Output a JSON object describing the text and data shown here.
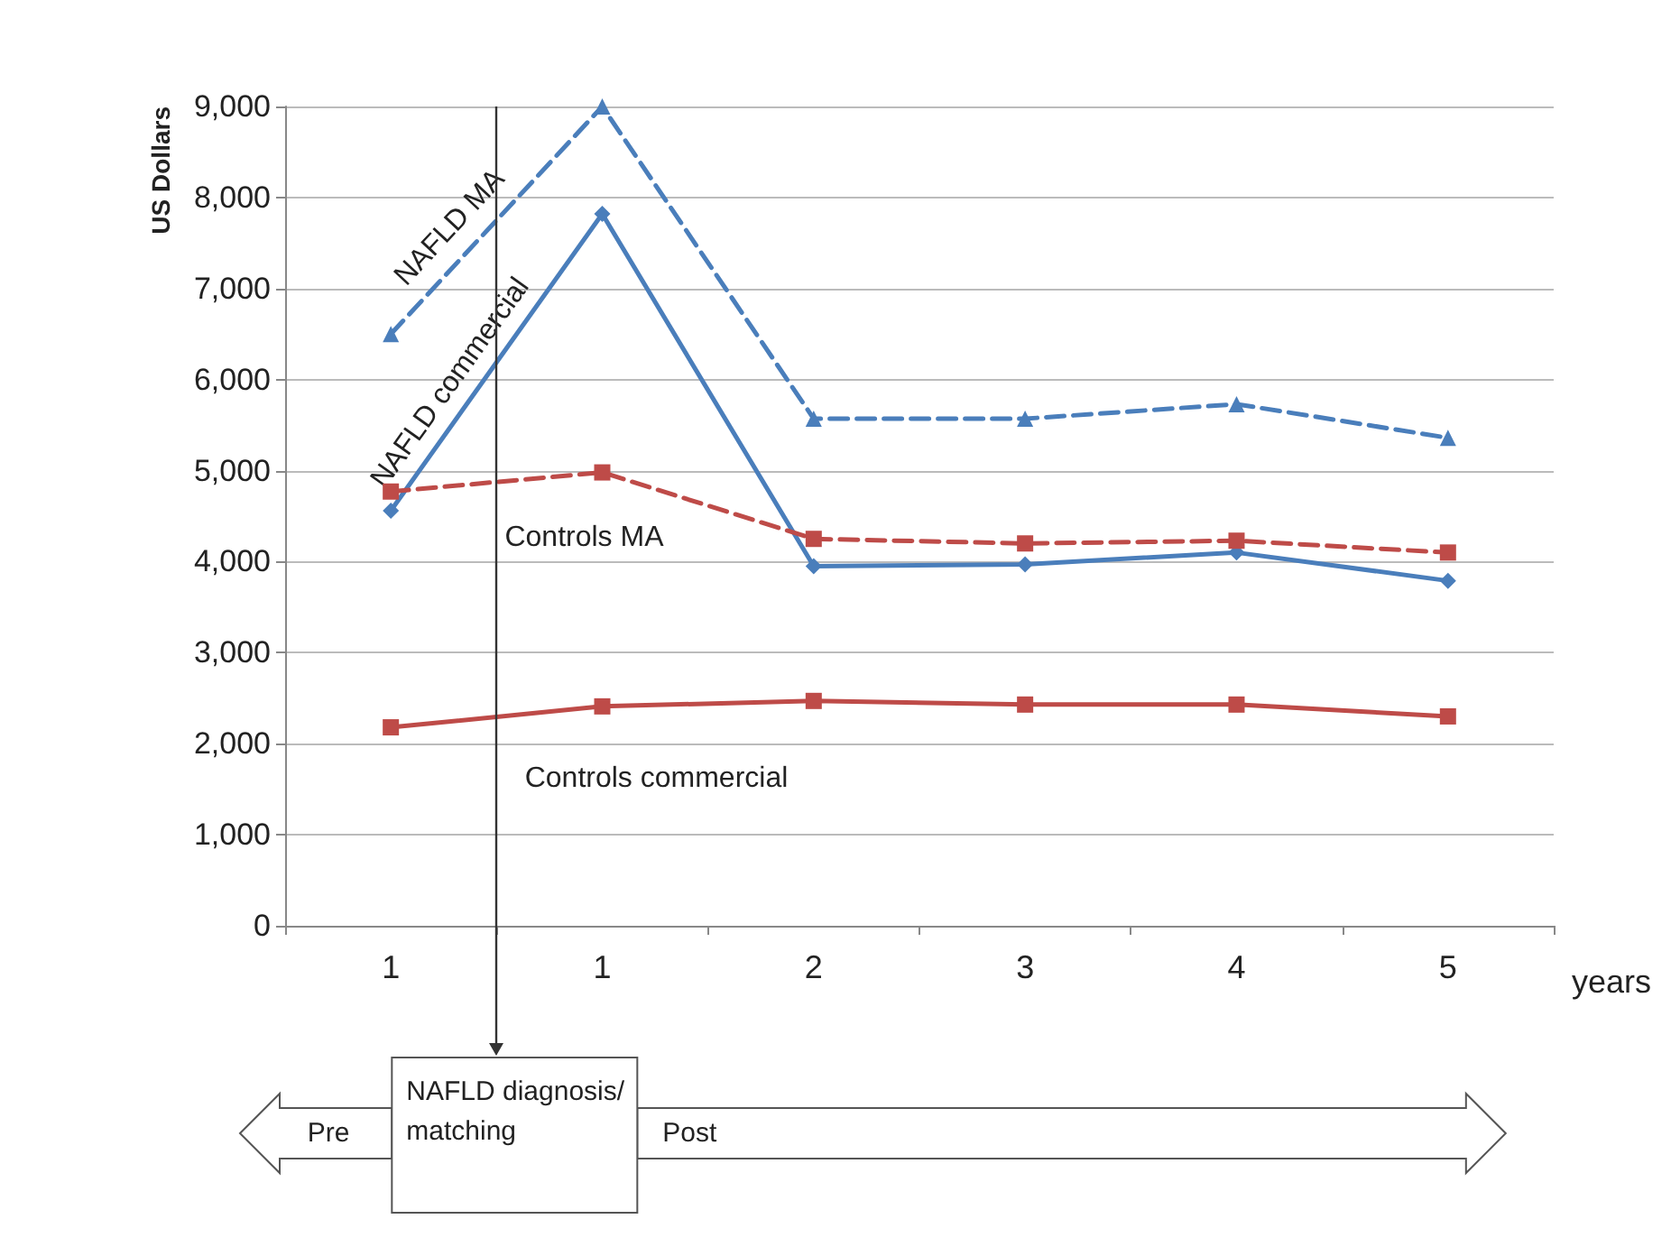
{
  "chart_data": {
    "type": "line",
    "ylabel": "US Dollars",
    "xlabel": "years",
    "categories": [
      "1",
      "1",
      "2",
      "3",
      "4",
      "5"
    ],
    "series": [
      {
        "name": "NAFLD MA",
        "color": "#4a7ebb",
        "marker": "triangle",
        "line_style": "dashed",
        "values": [
          6500,
          9000,
          5570,
          5570,
          5730,
          5360
        ]
      },
      {
        "name": "NAFLD commercial",
        "color": "#4a7ebb",
        "marker": "diamond",
        "line_style": "solid",
        "values": [
          4560,
          7820,
          3950,
          3970,
          4100,
          3790
        ]
      },
      {
        "name": "Controls MA",
        "color": "#be4b48",
        "marker": "square",
        "line_style": "dashed",
        "values": [
          4770,
          4980,
          4250,
          4200,
          4230,
          4100
        ]
      },
      {
        "name": "Controls commercial",
        "color": "#be4b48",
        "marker": "square",
        "line_style": "solid",
        "values": [
          2180,
          2410,
          2470,
          2430,
          2430,
          2300
        ]
      }
    ],
    "ylim": [
      0,
      9000
    ],
    "yticks": [
      {
        "value": 0,
        "label": "0"
      },
      {
        "value": 1000,
        "label": "1,000"
      },
      {
        "value": 2000,
        "label": "2,000"
      },
      {
        "value": 3000,
        "label": "3,000"
      },
      {
        "value": 4000,
        "label": "4,000"
      },
      {
        "value": 5000,
        "label": "5,000"
      },
      {
        "value": 6000,
        "label": "6,000"
      },
      {
        "value": 7000,
        "label": "7,000"
      },
      {
        "value": 8000,
        "label": "8,000"
      },
      {
        "value": 9000,
        "label": "9,000"
      }
    ],
    "grid": "y",
    "legend": false,
    "annotations": [
      "Pre",
      "NAFLD diagnosis/\nmatching",
      "Post"
    ]
  }
}
